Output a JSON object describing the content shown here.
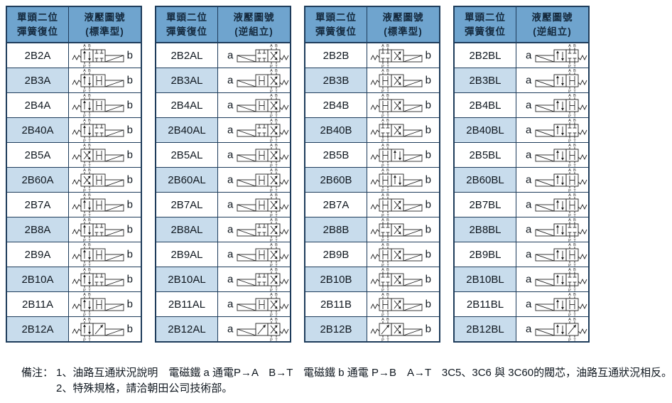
{
  "colors": {
    "header_bg": "#6FA4CE",
    "alt_row_bg": "#C8DCEC",
    "border": "#1E3C5B",
    "text": "#101820",
    "symbol_ink": "#222222"
  },
  "tables": [
    {
      "name": "a-standard",
      "col1_header": [
        "單頭二位",
        "彈簧復位"
      ],
      "col2_header": [
        "液壓圖號",
        "(標準型)"
      ],
      "assembly": "standard",
      "letter": "b",
      "rows": [
        {
          "model": "2B2A",
          "boxes": [
            "arrows",
            "blocked"
          ]
        },
        {
          "model": "2B3A",
          "boxes": [
            "arrows",
            "h"
          ]
        },
        {
          "model": "2B4A",
          "boxes": [
            "arrows",
            "h"
          ]
        },
        {
          "model": "2B40A",
          "boxes": [
            "arrows",
            "blocked"
          ]
        },
        {
          "model": "2B5A",
          "boxes": [
            "cross",
            "h"
          ]
        },
        {
          "model": "2B60A",
          "boxes": [
            "cross",
            "h"
          ]
        },
        {
          "model": "2B7A",
          "boxes": [
            "arrows",
            "h"
          ]
        },
        {
          "model": "2B8A",
          "boxes": [
            "arrows",
            "blocked"
          ]
        },
        {
          "model": "2B9A",
          "boxes": [
            "arrows",
            "h"
          ]
        },
        {
          "model": "2B10A",
          "boxes": [
            "arrows",
            "blocked"
          ]
        },
        {
          "model": "2B11A",
          "boxes": [
            "arrows",
            "h"
          ]
        },
        {
          "model": "2B12A",
          "boxes": [
            "arrows",
            "diag"
          ]
        }
      ]
    },
    {
      "name": "al-reverse",
      "col1_header": [
        "單頭二位",
        "彈簧復位"
      ],
      "col2_header": [
        "液壓圖號",
        "(逆組立)"
      ],
      "assembly": "reverse",
      "letter": "a",
      "rows": [
        {
          "model": "2B2AL",
          "boxes": [
            "blocked",
            "cross"
          ]
        },
        {
          "model": "2B3AL",
          "boxes": [
            "h",
            "cross"
          ]
        },
        {
          "model": "2B4AL",
          "boxes": [
            "h",
            "cross"
          ]
        },
        {
          "model": "2B40AL",
          "boxes": [
            "blocked",
            "cross"
          ]
        },
        {
          "model": "2B5AL",
          "boxes": [
            "h",
            "cross"
          ]
        },
        {
          "model": "2B60AL",
          "boxes": [
            "h",
            "cross"
          ]
        },
        {
          "model": "2B7AL",
          "boxes": [
            "h",
            "cross"
          ]
        },
        {
          "model": "2B8AL",
          "boxes": [
            "blocked",
            "cross"
          ]
        },
        {
          "model": "2B9AL",
          "boxes": [
            "h",
            "cross"
          ]
        },
        {
          "model": "2B10AL",
          "boxes": [
            "blocked",
            "cross"
          ]
        },
        {
          "model": "2B11AL",
          "boxes": [
            "h",
            "cross"
          ]
        },
        {
          "model": "2B12AL",
          "boxes": [
            "diag",
            "cross"
          ]
        }
      ]
    },
    {
      "name": "b-standard",
      "col1_header": [
        "單頭二位",
        "彈簧復位"
      ],
      "col2_header": [
        "液壓圖號",
        "(標準型)"
      ],
      "assembly": "standard",
      "letter": "b",
      "rows": [
        {
          "model": "2B2B",
          "boxes": [
            "blocked",
            "cross"
          ]
        },
        {
          "model": "2B3B",
          "boxes": [
            "h",
            "cross"
          ]
        },
        {
          "model": "2B4B",
          "boxes": [
            "h",
            "cross"
          ]
        },
        {
          "model": "2B40B",
          "boxes": [
            "blocked",
            "cross"
          ]
        },
        {
          "model": "2B5B",
          "boxes": [
            "h",
            "arrows"
          ]
        },
        {
          "model": "2B60B",
          "boxes": [
            "h",
            "arrows"
          ]
        },
        {
          "model": "2B7A",
          "boxes": [
            "h",
            "cross"
          ]
        },
        {
          "model": "2B8B",
          "boxes": [
            "blocked",
            "cross"
          ]
        },
        {
          "model": "2B9B",
          "boxes": [
            "h",
            "cross"
          ]
        },
        {
          "model": "2B10B",
          "boxes": [
            "blocked",
            "cross"
          ]
        },
        {
          "model": "2B11B",
          "boxes": [
            "h",
            "cross"
          ]
        },
        {
          "model": "2B12B",
          "boxes": [
            "diag",
            "cross"
          ]
        }
      ]
    },
    {
      "name": "bl-reverse",
      "col1_header": [
        "單頭二位",
        "彈簧復位"
      ],
      "col2_header": [
        "液壓圖號",
        "(逆組立)"
      ],
      "assembly": "reverse",
      "letter": "a",
      "rows": [
        {
          "model": "2B2BL",
          "boxes": [
            "arrows",
            "blocked"
          ]
        },
        {
          "model": "2B3BL",
          "boxes": [
            "arrows",
            "h"
          ]
        },
        {
          "model": "2B4BL",
          "boxes": [
            "arrows",
            "h"
          ]
        },
        {
          "model": "2B40BL",
          "boxes": [
            "arrows",
            "blocked"
          ]
        },
        {
          "model": "2B5BL",
          "boxes": [
            "arrows",
            "h"
          ]
        },
        {
          "model": "2B60BL",
          "boxes": [
            "arrows",
            "h"
          ]
        },
        {
          "model": "2B7BL",
          "boxes": [
            "arrows",
            "h"
          ]
        },
        {
          "model": "2B8BL",
          "boxes": [
            "arrows",
            "blocked"
          ]
        },
        {
          "model": "2B9BL",
          "boxes": [
            "arrows",
            "h"
          ]
        },
        {
          "model": "2B10BL",
          "boxes": [
            "arrows",
            "blocked"
          ]
        },
        {
          "model": "2B11BL",
          "boxes": [
            "arrows",
            "h"
          ]
        },
        {
          "model": "2B12BL",
          "boxes": [
            "arrows",
            "diag"
          ]
        }
      ]
    }
  ],
  "symbol": {
    "port_labels_top": [
      "A",
      "B"
    ],
    "port_labels_bottom": [
      "P",
      "T"
    ]
  },
  "notes": {
    "label": "備注：",
    "line1": "1、油路互通狀況說明　電磁鐵 a 通電P→A　B→T　電磁鐵 b 通電 P→B　A→T　3C5、3C6 與 3C60的閥芯，油路互通狀況相反。",
    "line2": "2、特殊規格，請洽朝田公司技術部。"
  }
}
